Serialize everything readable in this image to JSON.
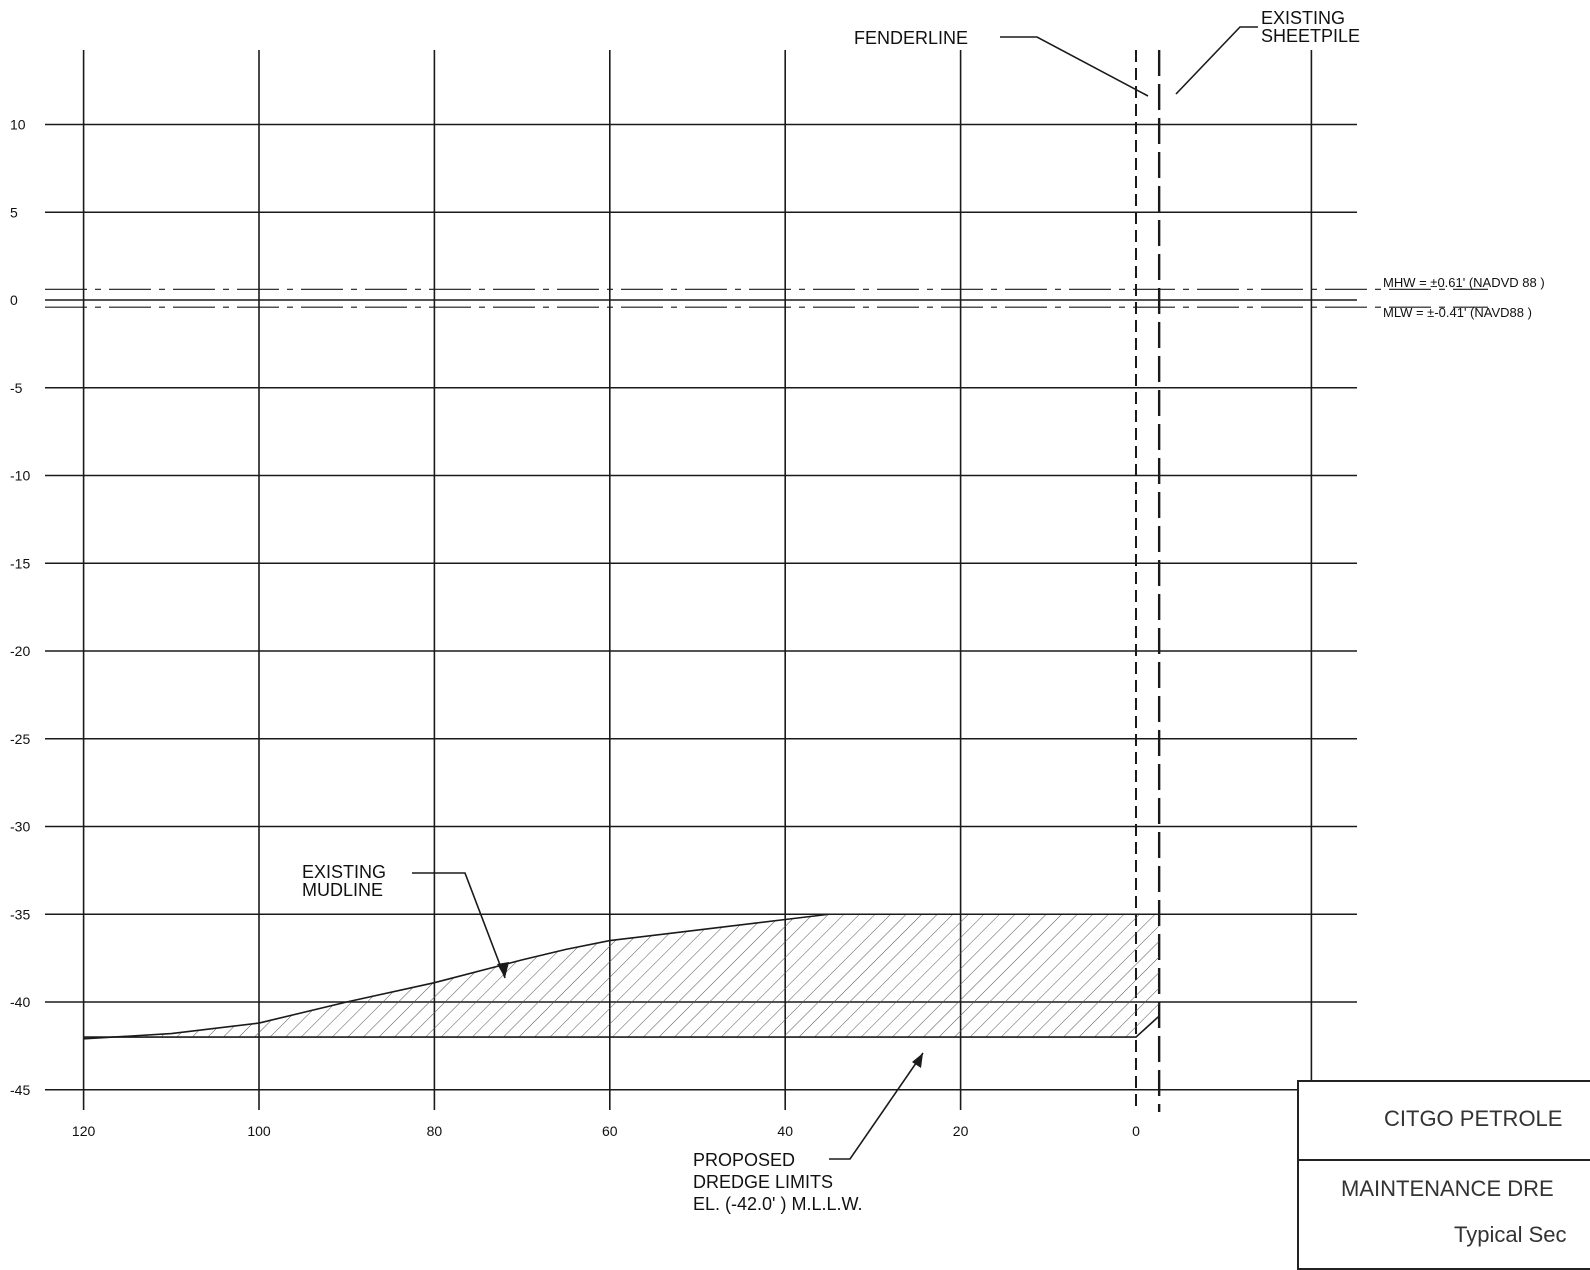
{
  "drawing": {
    "x_ticks": [
      120,
      100,
      80,
      60,
      40,
      20,
      0
    ],
    "y_ticks": [
      10,
      5,
      0,
      -5,
      -10,
      -15,
      -20,
      -25,
      -30,
      -35,
      -40,
      -45
    ],
    "x_range": [
      120,
      -20
    ],
    "y_range": [
      -46,
      13
    ],
    "fenderline_label": "FENDERLINE",
    "sheetpile_label_line1": "EXISTING",
    "sheetpile_label_line2": "SHEETPILE",
    "mhw_label": "MHW = ±0.61' (NADVD 88 )",
    "mlw_label": "MLW = ±-0.41' (NAVD88 )",
    "mhw_elevation": 0.61,
    "mlw_elevation": -0.41,
    "mudline_label_line1": "EXISTING",
    "mudline_label_line2": "MUDLINE",
    "dredge_label_line1": "PROPOSED",
    "dredge_label_line2": "DREDGE LIMITS",
    "dredge_label_line3": "EL. (-42.0' ) M.L.L.W.",
    "dredge_elevation": -42.0,
    "existing_mudline": [
      [
        120,
        -42.1
      ],
      [
        110,
        -41.8
      ],
      [
        100,
        -41.2
      ],
      [
        90,
        -40.0
      ],
      [
        80,
        -38.9
      ],
      [
        70,
        -37.6
      ],
      [
        65,
        -37.0
      ],
      [
        60,
        -36.5
      ],
      [
        50,
        -35.9
      ],
      [
        40,
        -35.3
      ],
      [
        35,
        -35.0
      ],
      [
        -3,
        -35.0
      ]
    ],
    "fenderline_station": 0,
    "sheetpile_station": -1.5,
    "hatch_color": "#555555",
    "line_color": "#1a1a1a"
  },
  "title_block": {
    "line1": "CITGO PETROLE",
    "line2": "MAINTENANCE DRE",
    "line3": "Typical Sec"
  }
}
